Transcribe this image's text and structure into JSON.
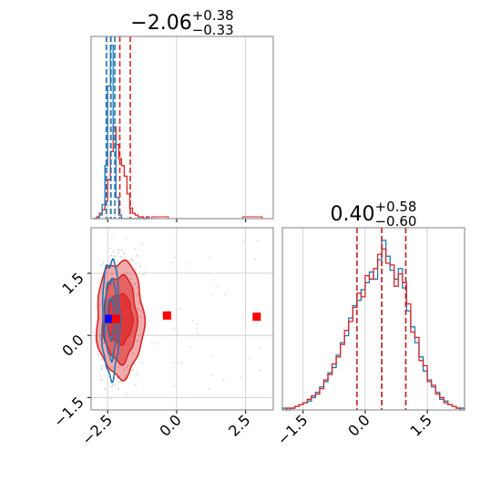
{
  "colors": {
    "series_red": "#d62728",
    "series_blue": "#1f77b4",
    "contour_fill": "#e03030",
    "marker_red": "#ff0000",
    "marker_blue": "#0000ff",
    "grid": "#c8c8c8",
    "frame": "#808080"
  },
  "titles": {
    "param1": {
      "main": "−2.06",
      "sup": "+0.38",
      "sub": "−0.33"
    },
    "param2": {
      "main": "0.40",
      "sup": "+0.58",
      "sub": "−0.60"
    }
  },
  "chart_data": [
    {
      "type": "histogram",
      "panel": "top-left",
      "xlim": [
        -3.1,
        3.5
      ],
      "grid": true,
      "x_ticks_shown": false,
      "bin_edges": [
        -3.0,
        -2.9,
        -2.8,
        -2.7,
        -2.6,
        -2.5,
        -2.4,
        -2.3,
        -2.2,
        -2.1,
        -2.0,
        -1.9,
        -1.8,
        -1.7,
        -1.6,
        -1.5,
        -1.4,
        -1.3,
        -1.2,
        -1.1,
        -1.0
      ],
      "series": [
        {
          "name": "",
          "color": "#d62728",
          "counts": [
            0.0,
            0.01,
            0.03,
            0.05,
            0.1,
            0.22,
            0.38,
            0.52,
            0.42,
            0.34,
            0.3,
            0.24,
            0.14,
            0.06,
            0.03,
            0.02,
            0.01,
            0.01,
            0.0,
            0.01
          ],
          "quantile_lines": [
            -2.39,
            -2.06,
            -1.68
          ]
        },
        {
          "name": "",
          "color": "#1f77b4",
          "counts": [
            0.0,
            0.0,
            0.02,
            0.08,
            0.3,
            0.75,
            0.98,
            0.45,
            0.12,
            0.02,
            0.0,
            0.0,
            0.0,
            0.0,
            0.0,
            0.0,
            0.0,
            0.0,
            0.0,
            0.0
          ],
          "quantile_lines": [
            -2.55,
            -2.38,
            -2.24
          ]
        }
      ],
      "outliers": [
        {
          "x_range": [
            -0.9,
            -0.3
          ],
          "count": 0.01
        },
        {
          "x_range": [
            2.4,
            3.1
          ],
          "count": 0.01
        }
      ]
    },
    {
      "type": "scatter",
      "panel": "bottom-left",
      "xlim": [
        -3.1,
        3.5
      ],
      "ylim": [
        -1.8,
        2.6
      ],
      "x_ticks": [
        -2.5,
        0.0,
        2.5
      ],
      "y_ticks": [
        -1.5,
        0.0,
        1.5
      ],
      "x_tick_labels": [
        "−2.5",
        "0.0",
        "2.5"
      ],
      "y_tick_labels": [
        "−1.5",
        "0.0",
        "1.5"
      ],
      "grid": true,
      "contours": [
        {
          "color": "#d62728",
          "filled": true,
          "center": [
            -2.05,
            0.4
          ],
          "levels": [
            [
              0.45,
              0.6
            ],
            [
              0.6,
              1.05
            ],
            [
              0.85,
              1.4
            ]
          ]
        },
        {
          "color": "#1f77b4",
          "filled": false,
          "center": [
            -2.38,
            0.4
          ],
          "levels": [
            [
              0.12,
              0.5
            ],
            [
              0.22,
              0.95
            ],
            [
              0.32,
              1.4
            ]
          ]
        }
      ],
      "markers": [
        {
          "color": "#0000ff",
          "shape": "square",
          "x": -2.45,
          "y": 0.4
        },
        {
          "color": "#ff0000",
          "shape": "square",
          "x": -2.2,
          "y": 0.4
        },
        {
          "color": "#ff0000",
          "shape": "square",
          "x": -0.35,
          "y": 0.48
        },
        {
          "color": "#ff0000",
          "shape": "square",
          "x": 2.9,
          "y": 0.45
        }
      ]
    },
    {
      "type": "histogram",
      "panel": "bottom-right",
      "xlim": [
        -2.0,
        2.4
      ],
      "x_ticks": [
        -1.5,
        0.0,
        1.5
      ],
      "x_tick_labels": [
        "−1.5",
        "0.0",
        "1.5"
      ],
      "grid": true,
      "bin_edges": [
        -2.0,
        -1.9,
        -1.8,
        -1.7,
        -1.6,
        -1.5,
        -1.4,
        -1.3,
        -1.2,
        -1.1,
        -1.0,
        -0.9,
        -0.8,
        -0.7,
        -0.6,
        -0.5,
        -0.4,
        -0.3,
        -0.2,
        -0.1,
        0.0,
        0.1,
        0.2,
        0.3,
        0.4,
        0.5,
        0.6,
        0.7,
        0.8,
        0.9,
        1.0,
        1.1,
        1.2,
        1.3,
        1.4,
        1.5,
        1.6,
        1.7,
        1.8,
        1.9,
        2.0,
        2.1,
        2.2,
        2.3,
        2.4
      ],
      "series": [
        {
          "name": "",
          "color": "#1f77b4",
          "counts": [
            0.01,
            0.0,
            0.01,
            0.02,
            0.03,
            0.04,
            0.05,
            0.07,
            0.1,
            0.13,
            0.16,
            0.21,
            0.24,
            0.31,
            0.38,
            0.42,
            0.52,
            0.59,
            0.62,
            0.68,
            0.72,
            0.78,
            0.74,
            0.85,
            0.96,
            0.87,
            0.79,
            0.74,
            0.8,
            0.69,
            0.56,
            0.47,
            0.38,
            0.3,
            0.22,
            0.17,
            0.13,
            0.1,
            0.06,
            0.05,
            0.03,
            0.02,
            0.01,
            0.01
          ],
          "quantile_lines": [
            -0.2,
            0.4,
            0.98
          ]
        },
        {
          "name": "",
          "color": "#d62728",
          "counts": [
            0.0,
            0.01,
            0.01,
            0.02,
            0.03,
            0.04,
            0.06,
            0.08,
            0.09,
            0.12,
            0.17,
            0.2,
            0.26,
            0.3,
            0.37,
            0.45,
            0.5,
            0.58,
            0.66,
            0.64,
            0.76,
            0.74,
            0.8,
            0.88,
            0.91,
            0.83,
            0.82,
            0.7,
            0.77,
            0.72,
            0.6,
            0.44,
            0.41,
            0.28,
            0.25,
            0.16,
            0.14,
            0.09,
            0.07,
            0.04,
            0.03,
            0.02,
            0.01,
            0.0
          ],
          "quantile_lines": [
            -0.2,
            0.4,
            0.98
          ]
        }
      ]
    }
  ]
}
